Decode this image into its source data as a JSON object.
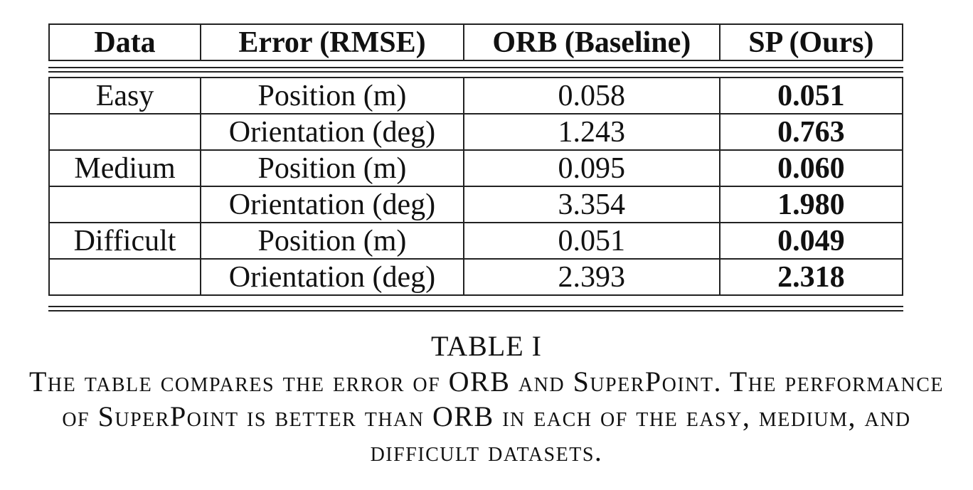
{
  "table": {
    "headers": [
      "Data",
      "Error (RMSE)",
      "ORB (Baseline)",
      "SP (Ours)"
    ],
    "rows": [
      {
        "data": "Easy",
        "error": "Position (m)",
        "orb": "0.058",
        "sp": "0.051"
      },
      {
        "data": "",
        "error": "Orientation (deg)",
        "orb": "1.243",
        "sp": "0.763"
      },
      {
        "data": "Medium",
        "error": "Position (m)",
        "orb": "0.095",
        "sp": "0.060"
      },
      {
        "data": "",
        "error": "Orientation (deg)",
        "orb": "3.354",
        "sp": "1.980"
      },
      {
        "data": "Difficult",
        "error": "Position (m)",
        "orb": "0.051",
        "sp": "0.049"
      },
      {
        "data": "",
        "error": "Orientation (deg)",
        "orb": "2.393",
        "sp": "2.318"
      }
    ]
  },
  "caption": {
    "label": "TABLE I",
    "text": "The table compares the error of ORB and SuperPoint. The performance of SuperPoint is better than ORB in each of the easy, medium, and difficult datasets."
  }
}
